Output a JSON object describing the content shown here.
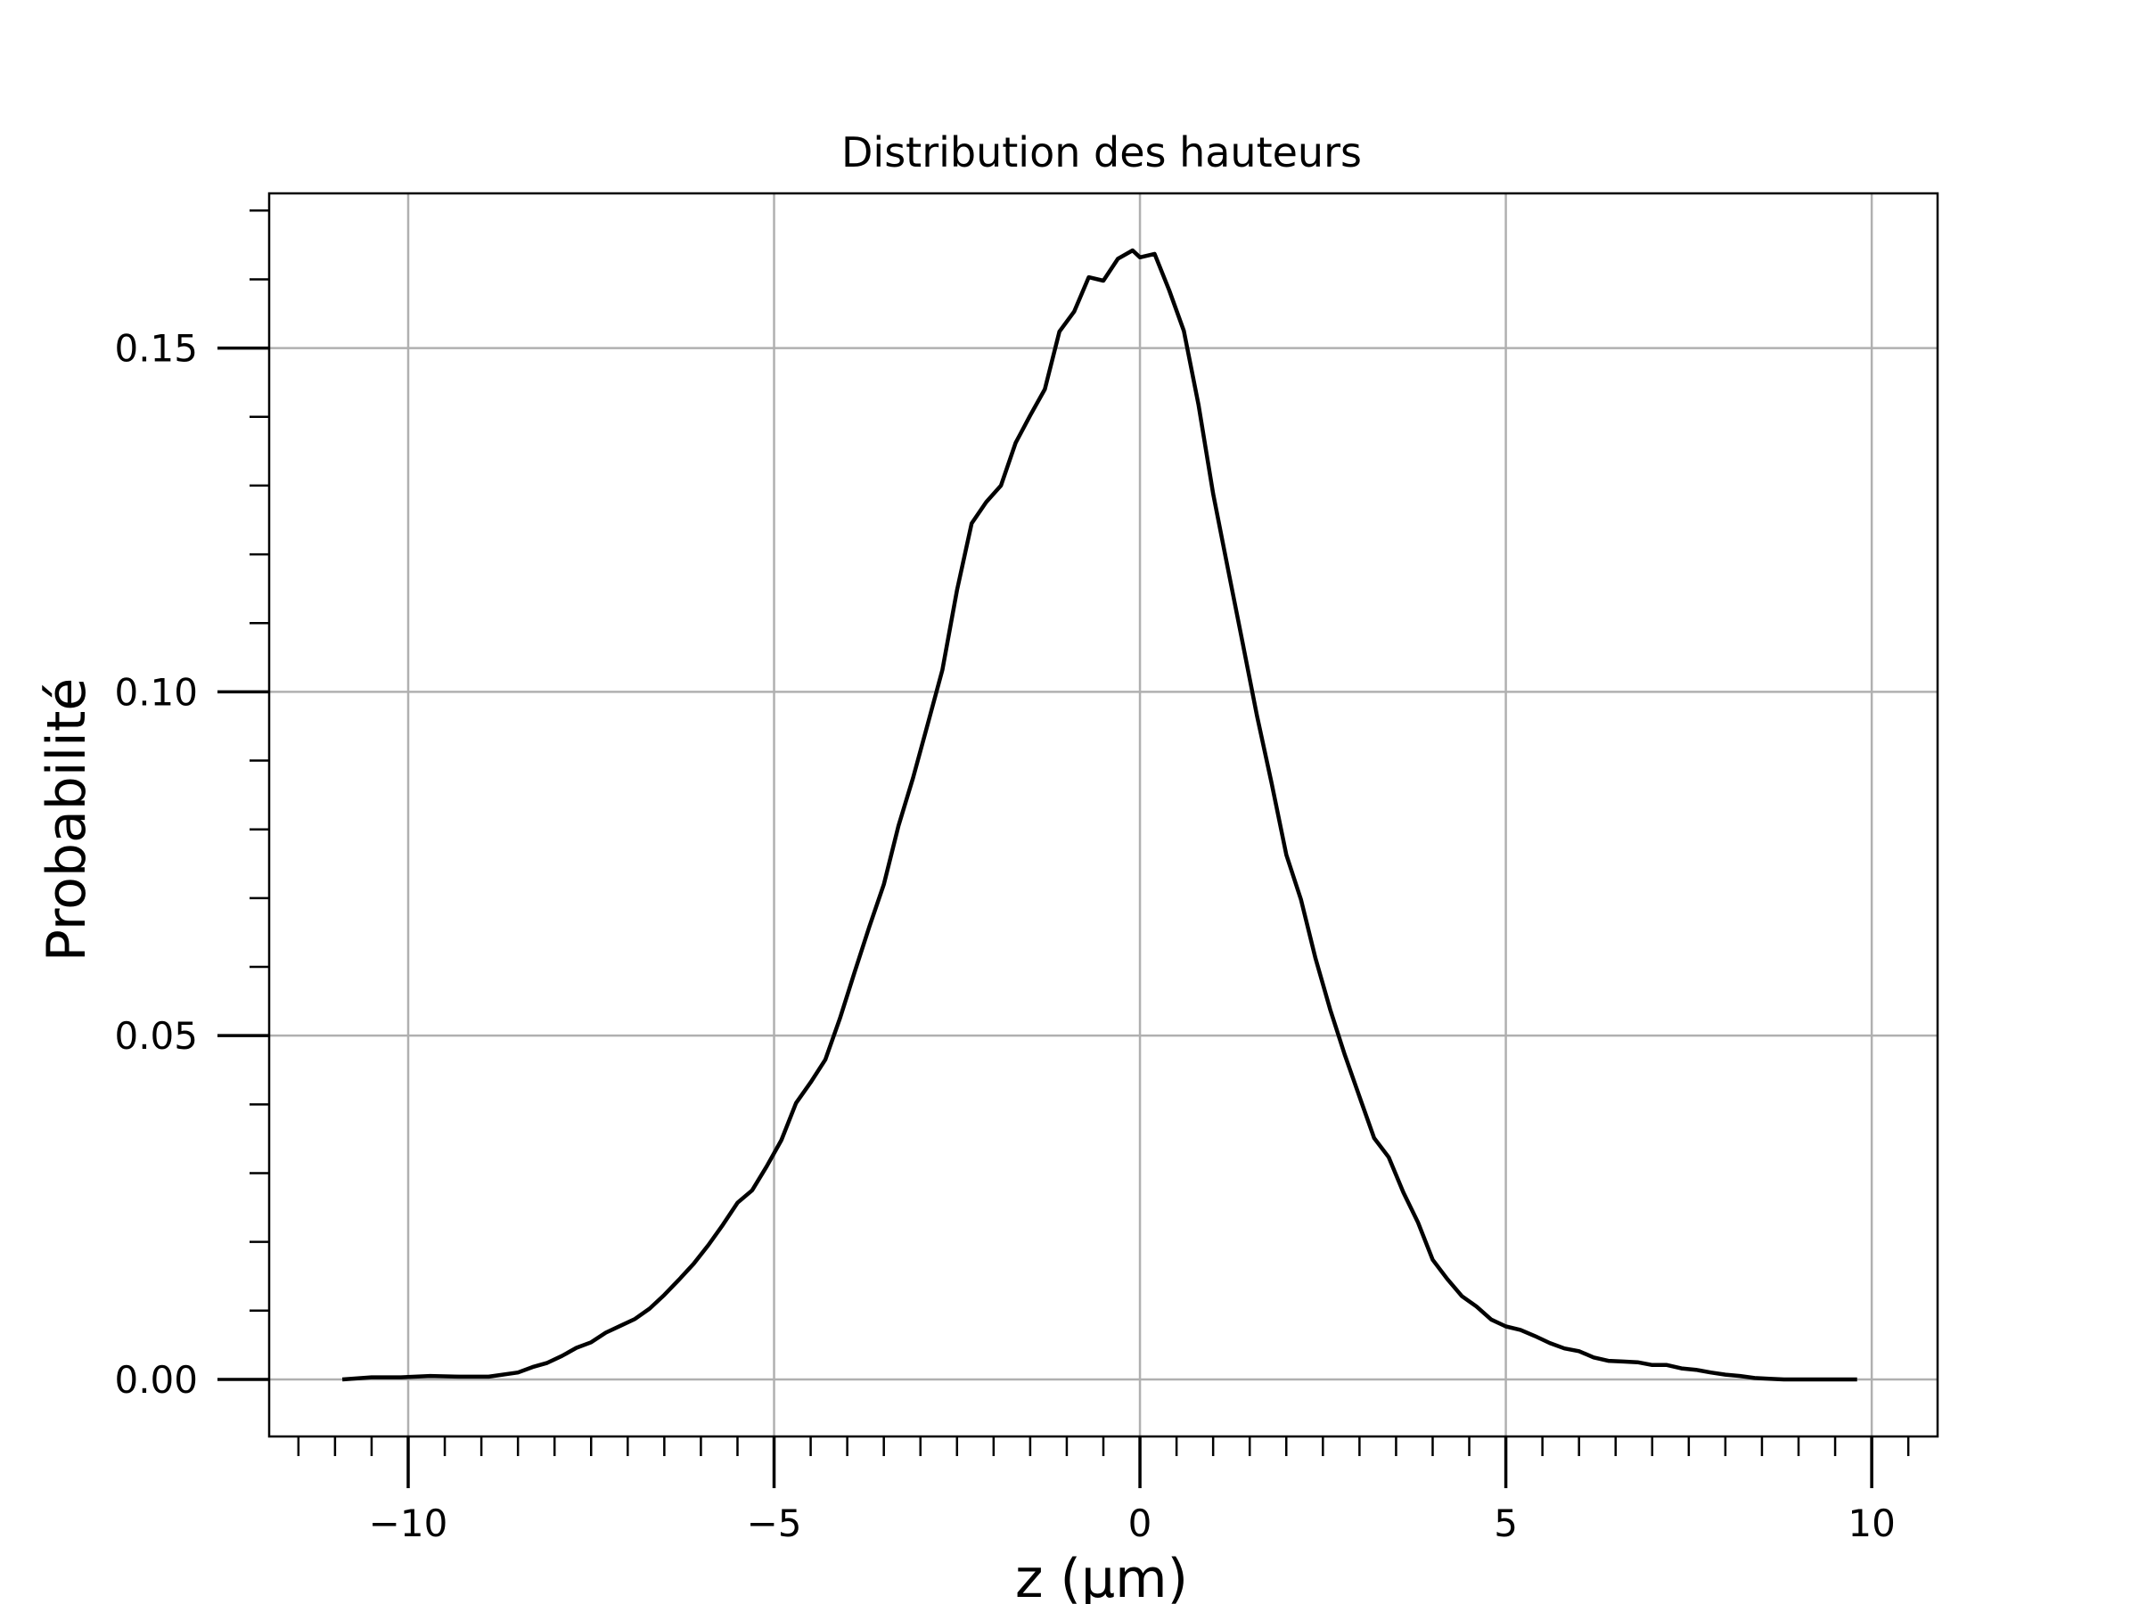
{
  "chart_data": {
    "type": "line",
    "title": "Distribution des hauteurs",
    "xlabel": "z (µm)",
    "ylabel": "Probabilité",
    "xlim": [
      -11.9,
      10.9
    ],
    "ylim": [
      -0.0083,
      0.1725
    ],
    "grid": true,
    "x_ticks": [
      -10,
      -5,
      0,
      5,
      10
    ],
    "x_tick_labels": [
      "−10",
      "−5",
      "0",
      "5",
      "10"
    ],
    "y_ticks": [
      0.0,
      0.05,
      0.1,
      0.15
    ],
    "y_tick_labels": [
      "0.00",
      "0.05",
      "0.10",
      "0.15"
    ],
    "x_minor_step": 0.5,
    "y_minor_step": 0.01,
    "line_color": "#000000",
    "grid_color": "#b0b0b0",
    "series": [
      {
        "name": "Probabilité",
        "x": [
          -10.9,
          -10.5,
          -10.1,
          -9.7,
          -9.3,
          -8.9,
          -8.5,
          -8.3,
          -8.1,
          -7.9,
          -7.7,
          -7.5,
          -7.3,
          -7.1,
          -6.9,
          -6.7,
          -6.5,
          -6.3,
          -6.1,
          -5.9,
          -5.7,
          -5.5,
          -5.3,
          -5.1,
          -4.9,
          -4.7,
          -4.5,
          -4.3,
          -4.1,
          -3.9,
          -3.7,
          -3.5,
          -3.3,
          -3.1,
          -2.9,
          -2.7,
          -2.5,
          -2.3,
          -2.1,
          -1.9,
          -1.7,
          -1.5,
          -1.3,
          -1.1,
          -0.9,
          -0.7,
          -0.5,
          -0.3,
          -0.1,
          0.0,
          0.2,
          0.4,
          0.6,
          0.8,
          1.0,
          1.2,
          1.4,
          1.6,
          1.8,
          2.0,
          2.2,
          2.4,
          2.6,
          2.8,
          3.0,
          3.2,
          3.4,
          3.6,
          3.8,
          4.0,
          4.2,
          4.4,
          4.6,
          4.8,
          5.0,
          5.2,
          5.4,
          5.6,
          5.8,
          6.0,
          6.2,
          6.4,
          6.6,
          6.8,
          7.0,
          7.2,
          7.4,
          7.6,
          7.8,
          8.0,
          8.2,
          8.4,
          8.6,
          8.8,
          9.0,
          9.2,
          9.4,
          9.6,
          9.8
        ],
        "y": [
          0.0,
          0.0003,
          0.0003,
          0.0005,
          0.0004,
          0.0004,
          0.001,
          0.0018,
          0.0024,
          0.0034,
          0.0046,
          0.0054,
          0.0068,
          0.0078,
          0.0088,
          0.0103,
          0.0123,
          0.0145,
          0.0168,
          0.0195,
          0.0225,
          0.0257,
          0.0275,
          0.031,
          0.0348,
          0.0402,
          0.0432,
          0.0465,
          0.0525,
          0.0592,
          0.0658,
          0.072,
          0.0805,
          0.0875,
          0.0953,
          0.1032,
          0.1148,
          0.1245,
          0.1276,
          0.13,
          0.1362,
          0.1402,
          0.144,
          0.1524,
          0.1553,
          0.1603,
          0.1598,
          0.163,
          0.1642,
          0.1632,
          0.1637,
          0.1584,
          0.1525,
          0.1418,
          0.1288,
          0.118,
          0.1073,
          0.0965,
          0.0867,
          0.0763,
          0.0698,
          0.0612,
          0.0538,
          0.0472,
          0.0411,
          0.0351,
          0.0323,
          0.0272,
          0.0228,
          0.0174,
          0.0146,
          0.0121,
          0.0106,
          0.0087,
          0.0077,
          0.0072,
          0.0063,
          0.0053,
          0.0045,
          0.0041,
          0.0032,
          0.0027,
          0.0026,
          0.0025,
          0.0021,
          0.0021,
          0.0016,
          0.0014,
          0.001,
          0.0007,
          0.0005,
          0.0002,
          0.0001,
          0.0,
          0.0,
          0.0,
          0.0,
          0.0,
          0.0
        ]
      }
    ]
  }
}
